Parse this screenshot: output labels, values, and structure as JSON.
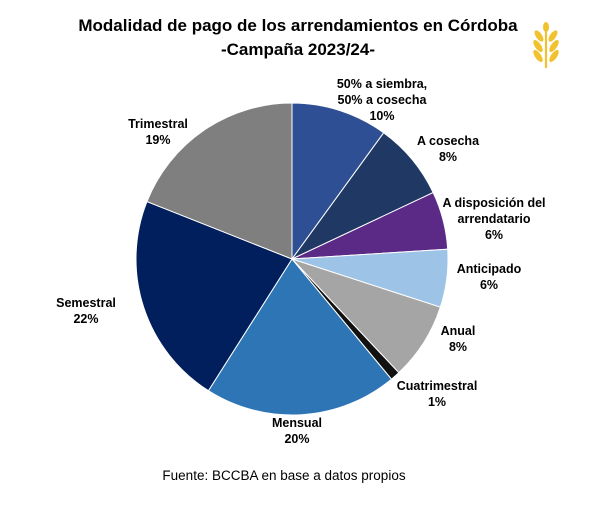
{
  "chart_data": {
    "type": "pie",
    "title_line1": "Modalidad de pago de los arrendamientos en Córdoba",
    "title_line2": "-Campaña 2023/24-",
    "source": "Fuente: BCCBA en base a datos propios",
    "slices": [
      {
        "label_lines": [
          "50% a siembra,",
          "50% a cosecha"
        ],
        "pct_label": "10%",
        "value": 10,
        "color": "#2e4f93"
      },
      {
        "label_lines": [
          "A cosecha"
        ],
        "pct_label": "8%",
        "value": 8,
        "color": "#1f3864"
      },
      {
        "label_lines": [
          "A disposición del",
          "arrendatario"
        ],
        "pct_label": "6%",
        "value": 6,
        "color": "#5b2a86"
      },
      {
        "label_lines": [
          "Anticipado"
        ],
        "pct_label": "6%",
        "value": 6,
        "color": "#9dc3e6"
      },
      {
        "label_lines": [
          "Anual"
        ],
        "pct_label": "8%",
        "value": 8,
        "color": "#a5a5a5"
      },
      {
        "label_lines": [
          "Cuatrimestral"
        ],
        "pct_label": "1%",
        "value": 1,
        "color": "#111111"
      },
      {
        "label_lines": [
          "Mensual"
        ],
        "pct_label": "20%",
        "value": 20,
        "color": "#2e75b6"
      },
      {
        "label_lines": [
          "Semestral"
        ],
        "pct_label": "22%",
        "value": 22,
        "color": "#001f5c"
      },
      {
        "label_lines": [
          "Trimestral"
        ],
        "pct_label": "19%",
        "value": 19,
        "color": "#7f7f7f"
      }
    ],
    "legend": "none"
  },
  "logo": {
    "icon": "wheat-icon",
    "color": "#f2c12e"
  }
}
